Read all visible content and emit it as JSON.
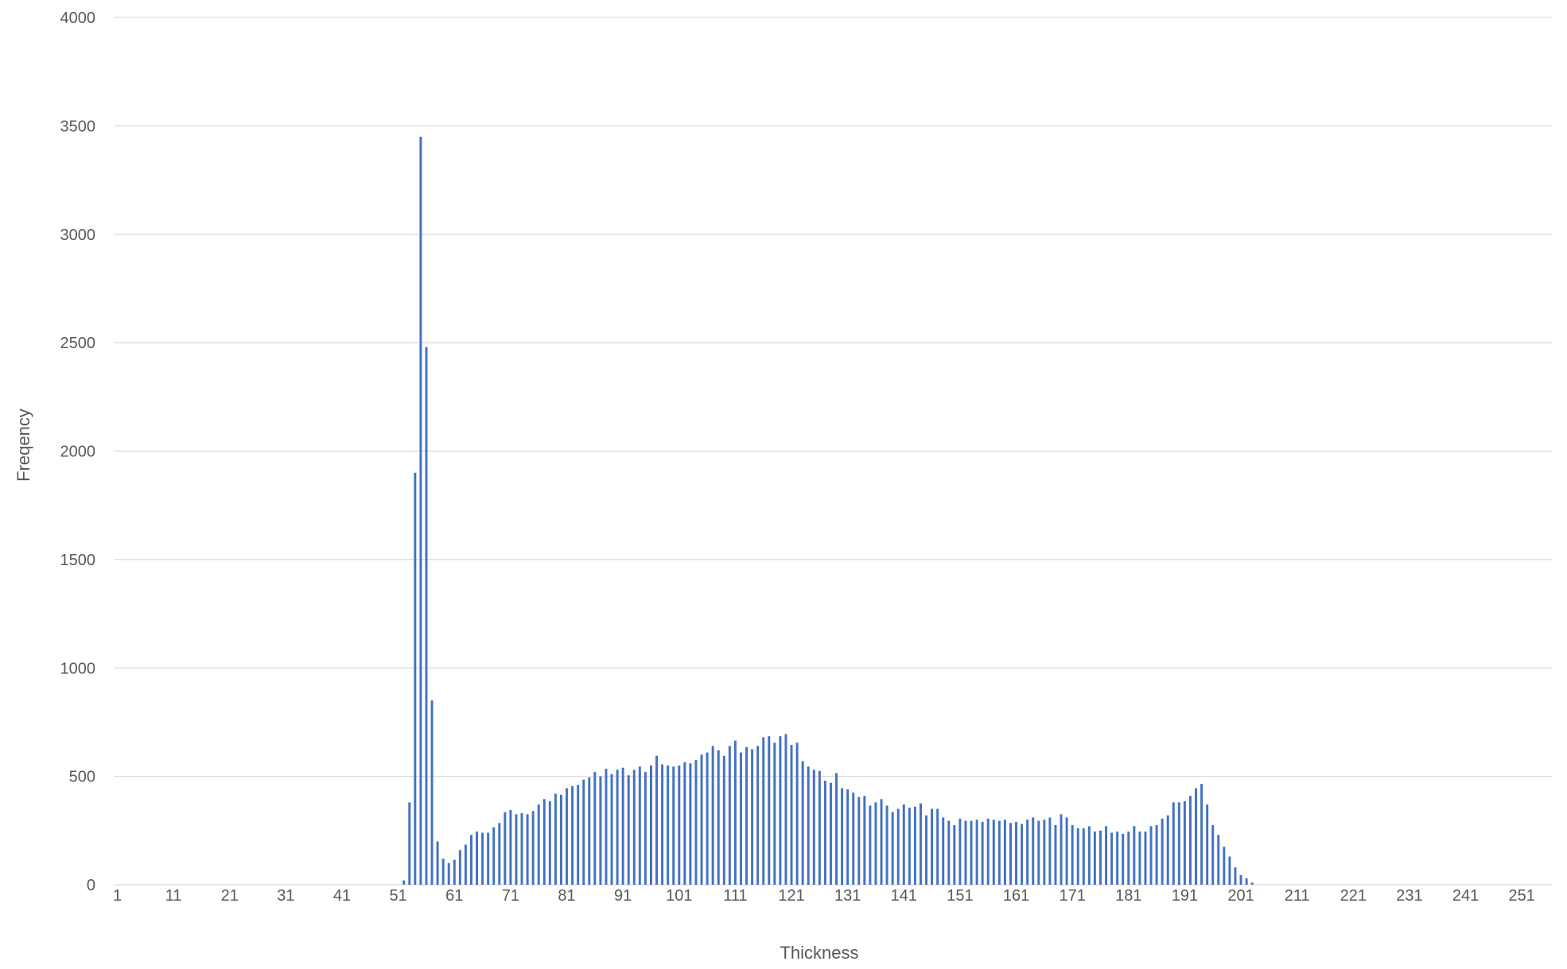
{
  "chart_data": {
    "type": "bar",
    "title": "",
    "xlabel": "Thickness",
    "ylabel": "Freqency",
    "x_start": 1,
    "x_end": 256,
    "ylim": [
      0,
      4000
    ],
    "yticks": [
      "0",
      "500",
      "1000",
      "1500",
      "2000",
      "2500",
      "3000",
      "3500",
      "4000"
    ],
    "xticks": [
      "1",
      "11",
      "21",
      "31",
      "41",
      "51",
      "61",
      "71",
      "81",
      "91",
      "101",
      "111",
      "121",
      "131",
      "141",
      "151",
      "161",
      "171",
      "181",
      "191",
      "201",
      "211",
      "221",
      "231",
      "241",
      "251"
    ],
    "grid": true,
    "legend": "none",
    "bar_color": "#4472C4",
    "grid_color": "#D9D9D9",
    "points": [
      {
        "x": 52,
        "y": 20
      },
      {
        "x": 53,
        "y": 380
      },
      {
        "x": 54,
        "y": 1900
      },
      {
        "x": 55,
        "y": 3450
      },
      {
        "x": 56,
        "y": 2480
      },
      {
        "x": 57,
        "y": 850
      },
      {
        "x": 58,
        "y": 200
      },
      {
        "x": 59,
        "y": 120
      },
      {
        "x": 60,
        "y": 100
      },
      {
        "x": 61,
        "y": 115
      },
      {
        "x": 62,
        "y": 160
      },
      {
        "x": 63,
        "y": 185
      },
      {
        "x": 64,
        "y": 230
      },
      {
        "x": 65,
        "y": 245
      },
      {
        "x": 66,
        "y": 240
      },
      {
        "x": 67,
        "y": 240
      },
      {
        "x": 68,
        "y": 265
      },
      {
        "x": 69,
        "y": 285
      },
      {
        "x": 70,
        "y": 335
      },
      {
        "x": 71,
        "y": 345
      },
      {
        "x": 72,
        "y": 325
      },
      {
        "x": 73,
        "y": 330
      },
      {
        "x": 74,
        "y": 325
      },
      {
        "x": 75,
        "y": 340
      },
      {
        "x": 76,
        "y": 370
      },
      {
        "x": 77,
        "y": 395
      },
      {
        "x": 78,
        "y": 385
      },
      {
        "x": 79,
        "y": 420
      },
      {
        "x": 80,
        "y": 415
      },
      {
        "x": 81,
        "y": 445
      },
      {
        "x": 82,
        "y": 455
      },
      {
        "x": 83,
        "y": 460
      },
      {
        "x": 84,
        "y": 485
      },
      {
        "x": 85,
        "y": 495
      },
      {
        "x": 86,
        "y": 520
      },
      {
        "x": 87,
        "y": 500
      },
      {
        "x": 88,
        "y": 535
      },
      {
        "x": 89,
        "y": 510
      },
      {
        "x": 90,
        "y": 530
      },
      {
        "x": 91,
        "y": 540
      },
      {
        "x": 92,
        "y": 505
      },
      {
        "x": 93,
        "y": 530
      },
      {
        "x": 94,
        "y": 545
      },
      {
        "x": 95,
        "y": 520
      },
      {
        "x": 96,
        "y": 550
      },
      {
        "x": 97,
        "y": 595
      },
      {
        "x": 98,
        "y": 555
      },
      {
        "x": 99,
        "y": 550
      },
      {
        "x": 100,
        "y": 545
      },
      {
        "x": 101,
        "y": 550
      },
      {
        "x": 102,
        "y": 565
      },
      {
        "x": 103,
        "y": 560
      },
      {
        "x": 104,
        "y": 575
      },
      {
        "x": 105,
        "y": 600
      },
      {
        "x": 106,
        "y": 610
      },
      {
        "x": 107,
        "y": 640
      },
      {
        "x": 108,
        "y": 620
      },
      {
        "x": 109,
        "y": 595
      },
      {
        "x": 110,
        "y": 640
      },
      {
        "x": 111,
        "y": 665
      },
      {
        "x": 112,
        "y": 610
      },
      {
        "x": 113,
        "y": 635
      },
      {
        "x": 114,
        "y": 625
      },
      {
        "x": 115,
        "y": 640
      },
      {
        "x": 116,
        "y": 680
      },
      {
        "x": 117,
        "y": 685
      },
      {
        "x": 118,
        "y": 655
      },
      {
        "x": 119,
        "y": 685
      },
      {
        "x": 120,
        "y": 695
      },
      {
        "x": 121,
        "y": 645
      },
      {
        "x": 122,
        "y": 655
      },
      {
        "x": 123,
        "y": 570
      },
      {
        "x": 124,
        "y": 545
      },
      {
        "x": 125,
        "y": 530
      },
      {
        "x": 126,
        "y": 525
      },
      {
        "x": 127,
        "y": 480
      },
      {
        "x": 128,
        "y": 470
      },
      {
        "x": 129,
        "y": 515
      },
      {
        "x": 130,
        "y": 445
      },
      {
        "x": 131,
        "y": 440
      },
      {
        "x": 132,
        "y": 425
      },
      {
        "x": 133,
        "y": 405
      },
      {
        "x": 134,
        "y": 410
      },
      {
        "x": 135,
        "y": 365
      },
      {
        "x": 136,
        "y": 380
      },
      {
        "x": 137,
        "y": 395
      },
      {
        "x": 138,
        "y": 365
      },
      {
        "x": 139,
        "y": 335
      },
      {
        "x": 140,
        "y": 350
      },
      {
        "x": 141,
        "y": 370
      },
      {
        "x": 142,
        "y": 355
      },
      {
        "x": 143,
        "y": 360
      },
      {
        "x": 144,
        "y": 375
      },
      {
        "x": 145,
        "y": 320
      },
      {
        "x": 146,
        "y": 350
      },
      {
        "x": 147,
        "y": 350
      },
      {
        "x": 148,
        "y": 310
      },
      {
        "x": 149,
        "y": 295
      },
      {
        "x": 150,
        "y": 275
      },
      {
        "x": 151,
        "y": 305
      },
      {
        "x": 152,
        "y": 295
      },
      {
        "x": 153,
        "y": 295
      },
      {
        "x": 154,
        "y": 300
      },
      {
        "x": 155,
        "y": 290
      },
      {
        "x": 156,
        "y": 305
      },
      {
        "x": 157,
        "y": 300
      },
      {
        "x": 158,
        "y": 295
      },
      {
        "x": 159,
        "y": 300
      },
      {
        "x": 160,
        "y": 285
      },
      {
        "x": 161,
        "y": 290
      },
      {
        "x": 162,
        "y": 280
      },
      {
        "x": 163,
        "y": 300
      },
      {
        "x": 164,
        "y": 310
      },
      {
        "x": 165,
        "y": 295
      },
      {
        "x": 166,
        "y": 300
      },
      {
        "x": 167,
        "y": 310
      },
      {
        "x": 168,
        "y": 275
      },
      {
        "x": 169,
        "y": 325
      },
      {
        "x": 170,
        "y": 310
      },
      {
        "x": 171,
        "y": 275
      },
      {
        "x": 172,
        "y": 260
      },
      {
        "x": 173,
        "y": 260
      },
      {
        "x": 174,
        "y": 270
      },
      {
        "x": 175,
        "y": 245
      },
      {
        "x": 176,
        "y": 250
      },
      {
        "x": 177,
        "y": 270
      },
      {
        "x": 178,
        "y": 240
      },
      {
        "x": 179,
        "y": 245
      },
      {
        "x": 180,
        "y": 235
      },
      {
        "x": 181,
        "y": 245
      },
      {
        "x": 182,
        "y": 270
      },
      {
        "x": 183,
        "y": 245
      },
      {
        "x": 184,
        "y": 245
      },
      {
        "x": 185,
        "y": 270
      },
      {
        "x": 186,
        "y": 275
      },
      {
        "x": 187,
        "y": 305
      },
      {
        "x": 188,
        "y": 320
      },
      {
        "x": 189,
        "y": 380
      },
      {
        "x": 190,
        "y": 380
      },
      {
        "x": 191,
        "y": 385
      },
      {
        "x": 192,
        "y": 410
      },
      {
        "x": 193,
        "y": 445
      },
      {
        "x": 194,
        "y": 465
      },
      {
        "x": 195,
        "y": 370
      },
      {
        "x": 196,
        "y": 275
      },
      {
        "x": 197,
        "y": 230
      },
      {
        "x": 198,
        "y": 175
      },
      {
        "x": 199,
        "y": 130
      },
      {
        "x": 200,
        "y": 80
      },
      {
        "x": 201,
        "y": 45
      },
      {
        "x": 202,
        "y": 30
      },
      {
        "x": 203,
        "y": 10
      }
    ]
  }
}
